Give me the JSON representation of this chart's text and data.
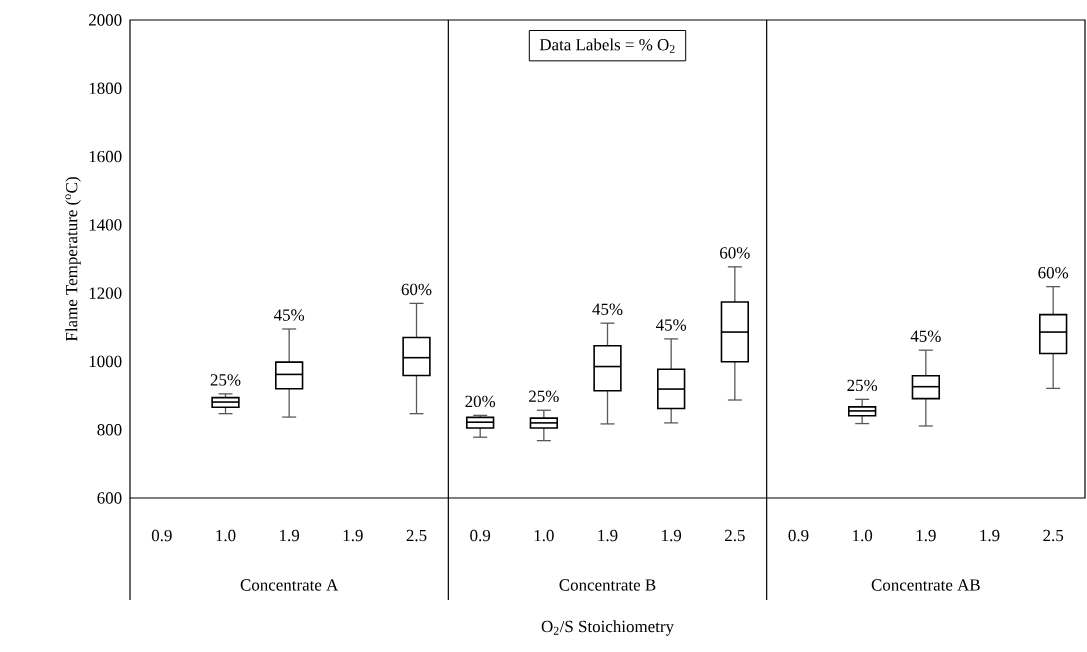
{
  "chart_data": {
    "type": "box",
    "ylabel": "Flame Temperature ($^{o}$C)",
    "xlabel": "O$_{2}$/S Stoichiometry",
    "categories": [
      "0.9",
      "1.0",
      "1.9",
      "1.9",
      "2.5",
      "0.9",
      "1.0",
      "1.9",
      "1.9",
      "2.5",
      "0.9",
      "1.0",
      "1.9",
      "1.9",
      "2.5"
    ],
    "boxes": [
      null,
      {
        "low": 847,
        "q1": 866,
        "median": 881,
        "q3": 894,
        "high": 905
      },
      {
        "low": 837,
        "q1": 920,
        "median": 962,
        "q3": 998,
        "high": 1095
      },
      null,
      {
        "low": 847,
        "q1": 959,
        "median": 1011,
        "q3": 1070,
        "high": 1170
      },
      {
        "low": 778,
        "q1": 805,
        "median": 822,
        "q3": 836,
        "high": 842
      },
      {
        "low": 768,
        "q1": 805,
        "median": 820,
        "q3": 834,
        "high": 857
      },
      {
        "low": 817,
        "q1": 914,
        "median": 985,
        "q3": 1046,
        "high": 1112
      },
      {
        "low": 820,
        "q1": 862,
        "median": 919,
        "q3": 977,
        "high": 1066
      },
      {
        "low": 887,
        "q1": 999,
        "median": 1086,
        "q3": 1174,
        "high": 1277
      },
      null,
      {
        "low": 818,
        "q1": 841,
        "median": 855,
        "q3": 867,
        "high": 889
      },
      {
        "low": 811,
        "q1": 891,
        "median": 926,
        "q3": 958,
        "high": 1033
      },
      null,
      {
        "low": 921,
        "q1": 1023,
        "median": 1086,
        "q3": 1137,
        "high": 1219
      }
    ],
    "value_labels": [
      null,
      "25%",
      "45%",
      null,
      "60%",
      "20%",
      "25%",
      "45%",
      "45%",
      "60%",
      null,
      "25%",
      "45%",
      null,
      "60%"
    ],
    "ylim": [
      600,
      2000
    ],
    "yticks": [
      600,
      800,
      1000,
      1200,
      1400,
      1600,
      1800,
      2000
    ],
    "annotations": [
      "Data Labels = % O$_{2}$",
      "Concentrate A",
      "Concentrate B",
      "Concentrate AB"
    ]
  }
}
